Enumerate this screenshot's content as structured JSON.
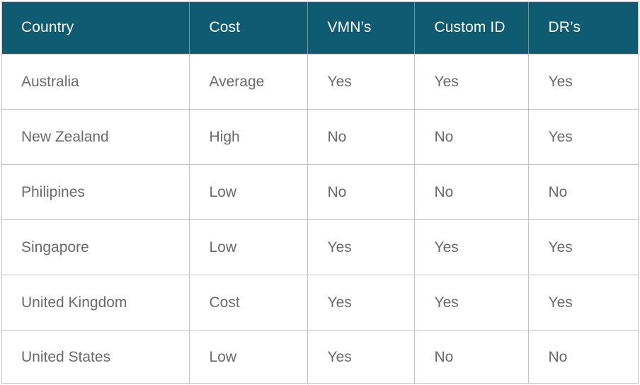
{
  "table": {
    "headers": [
      "Country",
      "Cost",
      "VMN’s",
      "Custom ID",
      "DR’s"
    ],
    "rows": [
      [
        "Australia",
        "Average",
        "Yes",
        "Yes",
        "Yes"
      ],
      [
        "New Zealand",
        "High",
        "No",
        "No",
        "Yes"
      ],
      [
        "Philipines",
        "Low",
        "No",
        "No",
        "No"
      ],
      [
        "Singapore",
        "Low",
        "Yes",
        "Yes",
        "Yes"
      ],
      [
        "United Kingdom",
        "Cost",
        "Yes",
        "Yes",
        "Yes"
      ],
      [
        "United States",
        "Low",
        "Yes",
        "No",
        "No"
      ]
    ]
  },
  "colors": {
    "header_background": "#0f5b72",
    "header_text": "#ffffff",
    "cell_text": "#6a6a6a",
    "grid_lines": "#c4c4c4"
  }
}
